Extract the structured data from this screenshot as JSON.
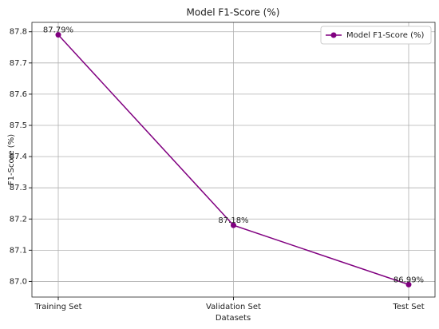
{
  "chart_data": {
    "type": "line",
    "title": "Model F1-Score (%)",
    "x_label": "Datasets",
    "y_label": "F1-Score (%)",
    "categories": [
      "Training Set",
      "Validation Set",
      "Test Set"
    ],
    "series": [
      {
        "name": "Model F1-Score (%)",
        "color": "#800080",
        "values": [
          87.79,
          87.18,
          86.99
        ],
        "value_labels": [
          "87.79%",
          "87.18%",
          "86.99%"
        ]
      }
    ],
    "ylim": [
      86.95,
      87.83
    ],
    "yticks": [
      {
        "value": 87.0,
        "label": "87.0"
      },
      87.1,
      87.2,
      87.3,
      87.4,
      87.5,
      87.6,
      87.7,
      87.8
    ],
    "grid": true,
    "legend": "upper right"
  }
}
